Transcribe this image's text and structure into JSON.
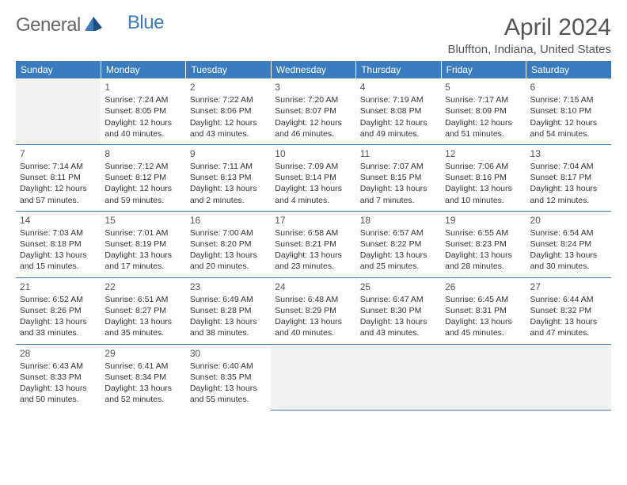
{
  "logo": {
    "text1": "General",
    "text2": "Blue"
  },
  "title": "April 2024",
  "location": "Bluffton, Indiana, United States",
  "colors": {
    "header_bg": "#3a7bbf",
    "header_text": "#ffffff",
    "border": "#3a7bbf",
    "empty_bg": "#f2f2f2",
    "text": "#333333",
    "title_text": "#555555"
  },
  "weekdays": [
    "Sunday",
    "Monday",
    "Tuesday",
    "Wednesday",
    "Thursday",
    "Friday",
    "Saturday"
  ],
  "weeks": [
    [
      null,
      {
        "n": "1",
        "sr": "Sunrise: 7:24 AM",
        "ss": "Sunset: 8:05 PM",
        "d1": "Daylight: 12 hours",
        "d2": "and 40 minutes."
      },
      {
        "n": "2",
        "sr": "Sunrise: 7:22 AM",
        "ss": "Sunset: 8:06 PM",
        "d1": "Daylight: 12 hours",
        "d2": "and 43 minutes."
      },
      {
        "n": "3",
        "sr": "Sunrise: 7:20 AM",
        "ss": "Sunset: 8:07 PM",
        "d1": "Daylight: 12 hours",
        "d2": "and 46 minutes."
      },
      {
        "n": "4",
        "sr": "Sunrise: 7:19 AM",
        "ss": "Sunset: 8:08 PM",
        "d1": "Daylight: 12 hours",
        "d2": "and 49 minutes."
      },
      {
        "n": "5",
        "sr": "Sunrise: 7:17 AM",
        "ss": "Sunset: 8:09 PM",
        "d1": "Daylight: 12 hours",
        "d2": "and 51 minutes."
      },
      {
        "n": "6",
        "sr": "Sunrise: 7:15 AM",
        "ss": "Sunset: 8:10 PM",
        "d1": "Daylight: 12 hours",
        "d2": "and 54 minutes."
      }
    ],
    [
      {
        "n": "7",
        "sr": "Sunrise: 7:14 AM",
        "ss": "Sunset: 8:11 PM",
        "d1": "Daylight: 12 hours",
        "d2": "and 57 minutes."
      },
      {
        "n": "8",
        "sr": "Sunrise: 7:12 AM",
        "ss": "Sunset: 8:12 PM",
        "d1": "Daylight: 12 hours",
        "d2": "and 59 minutes."
      },
      {
        "n": "9",
        "sr": "Sunrise: 7:11 AM",
        "ss": "Sunset: 8:13 PM",
        "d1": "Daylight: 13 hours",
        "d2": "and 2 minutes."
      },
      {
        "n": "10",
        "sr": "Sunrise: 7:09 AM",
        "ss": "Sunset: 8:14 PM",
        "d1": "Daylight: 13 hours",
        "d2": "and 4 minutes."
      },
      {
        "n": "11",
        "sr": "Sunrise: 7:07 AM",
        "ss": "Sunset: 8:15 PM",
        "d1": "Daylight: 13 hours",
        "d2": "and 7 minutes."
      },
      {
        "n": "12",
        "sr": "Sunrise: 7:06 AM",
        "ss": "Sunset: 8:16 PM",
        "d1": "Daylight: 13 hours",
        "d2": "and 10 minutes."
      },
      {
        "n": "13",
        "sr": "Sunrise: 7:04 AM",
        "ss": "Sunset: 8:17 PM",
        "d1": "Daylight: 13 hours",
        "d2": "and 12 minutes."
      }
    ],
    [
      {
        "n": "14",
        "sr": "Sunrise: 7:03 AM",
        "ss": "Sunset: 8:18 PM",
        "d1": "Daylight: 13 hours",
        "d2": "and 15 minutes."
      },
      {
        "n": "15",
        "sr": "Sunrise: 7:01 AM",
        "ss": "Sunset: 8:19 PM",
        "d1": "Daylight: 13 hours",
        "d2": "and 17 minutes."
      },
      {
        "n": "16",
        "sr": "Sunrise: 7:00 AM",
        "ss": "Sunset: 8:20 PM",
        "d1": "Daylight: 13 hours",
        "d2": "and 20 minutes."
      },
      {
        "n": "17",
        "sr": "Sunrise: 6:58 AM",
        "ss": "Sunset: 8:21 PM",
        "d1": "Daylight: 13 hours",
        "d2": "and 23 minutes."
      },
      {
        "n": "18",
        "sr": "Sunrise: 6:57 AM",
        "ss": "Sunset: 8:22 PM",
        "d1": "Daylight: 13 hours",
        "d2": "and 25 minutes."
      },
      {
        "n": "19",
        "sr": "Sunrise: 6:55 AM",
        "ss": "Sunset: 8:23 PM",
        "d1": "Daylight: 13 hours",
        "d2": "and 28 minutes."
      },
      {
        "n": "20",
        "sr": "Sunrise: 6:54 AM",
        "ss": "Sunset: 8:24 PM",
        "d1": "Daylight: 13 hours",
        "d2": "and 30 minutes."
      }
    ],
    [
      {
        "n": "21",
        "sr": "Sunrise: 6:52 AM",
        "ss": "Sunset: 8:26 PM",
        "d1": "Daylight: 13 hours",
        "d2": "and 33 minutes."
      },
      {
        "n": "22",
        "sr": "Sunrise: 6:51 AM",
        "ss": "Sunset: 8:27 PM",
        "d1": "Daylight: 13 hours",
        "d2": "and 35 minutes."
      },
      {
        "n": "23",
        "sr": "Sunrise: 6:49 AM",
        "ss": "Sunset: 8:28 PM",
        "d1": "Daylight: 13 hours",
        "d2": "and 38 minutes."
      },
      {
        "n": "24",
        "sr": "Sunrise: 6:48 AM",
        "ss": "Sunset: 8:29 PM",
        "d1": "Daylight: 13 hours",
        "d2": "and 40 minutes."
      },
      {
        "n": "25",
        "sr": "Sunrise: 6:47 AM",
        "ss": "Sunset: 8:30 PM",
        "d1": "Daylight: 13 hours",
        "d2": "and 43 minutes."
      },
      {
        "n": "26",
        "sr": "Sunrise: 6:45 AM",
        "ss": "Sunset: 8:31 PM",
        "d1": "Daylight: 13 hours",
        "d2": "and 45 minutes."
      },
      {
        "n": "27",
        "sr": "Sunrise: 6:44 AM",
        "ss": "Sunset: 8:32 PM",
        "d1": "Daylight: 13 hours",
        "d2": "and 47 minutes."
      }
    ],
    [
      {
        "n": "28",
        "sr": "Sunrise: 6:43 AM",
        "ss": "Sunset: 8:33 PM",
        "d1": "Daylight: 13 hours",
        "d2": "and 50 minutes."
      },
      {
        "n": "29",
        "sr": "Sunrise: 6:41 AM",
        "ss": "Sunset: 8:34 PM",
        "d1": "Daylight: 13 hours",
        "d2": "and 52 minutes."
      },
      {
        "n": "30",
        "sr": "Sunrise: 6:40 AM",
        "ss": "Sunset: 8:35 PM",
        "d1": "Daylight: 13 hours",
        "d2": "and 55 minutes."
      },
      null,
      null,
      null,
      null
    ]
  ]
}
